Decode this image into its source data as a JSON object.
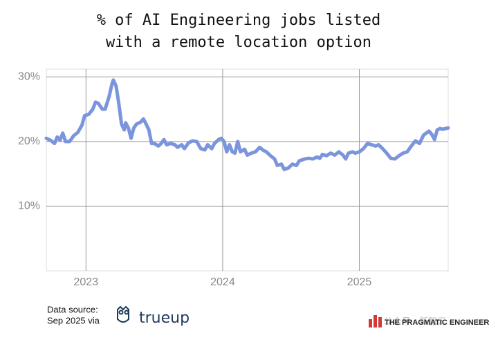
{
  "chart_data": {
    "type": "line",
    "title": [
      "% of AI Engineering jobs listed",
      "with a remote location option"
    ],
    "x": [
      2022.71,
      2022.74,
      2022.77,
      2022.79,
      2022.81,
      2022.83,
      2022.85,
      2022.88,
      2022.91,
      2022.94,
      2022.97,
      2022.99,
      2023.02,
      2023.05,
      2023.07,
      2023.09,
      2023.12,
      2023.14,
      2023.17,
      2023.19,
      2023.2,
      2023.22,
      2023.24,
      2023.26,
      2023.28,
      2023.29,
      2023.31,
      2023.33,
      2023.35,
      2023.37,
      2023.4,
      2023.42,
      2023.44,
      2023.46,
      2023.48,
      2023.5,
      2023.53,
      2023.55,
      2023.57,
      2023.59,
      2023.62,
      2023.65,
      2023.67,
      2023.7,
      2023.72,
      2023.75,
      2023.78,
      2023.81,
      2023.84,
      2023.87,
      2023.89,
      2023.92,
      2023.94,
      2023.97,
      2023.99,
      2024.01,
      2024.03,
      2024.05,
      2024.07,
      2024.09,
      2024.11,
      2024.13,
      2024.16,
      2024.18,
      2024.21,
      2024.24,
      2024.27,
      2024.3,
      2024.32,
      2024.35,
      2024.38,
      2024.4,
      2024.43,
      2024.45,
      2024.48,
      2024.51,
      2024.54,
      2024.56,
      2024.6,
      2024.63,
      2024.66,
      2024.69,
      2024.71,
      2024.73,
      2024.76,
      2024.79,
      2024.82,
      2024.85,
      2024.88,
      2024.9,
      2024.92,
      2024.95,
      2024.97,
      2025.0,
      2025.03,
      2025.06,
      2025.09,
      2025.12,
      2025.14,
      2025.17,
      2025.2,
      2025.23,
      2025.26,
      2025.29,
      2025.32,
      2025.35,
      2025.38,
      2025.41,
      2025.44,
      2025.47,
      2025.51,
      2025.53,
      2025.55,
      2025.57,
      2025.59,
      2025.61,
      2025.63,
      2025.65
    ],
    "values": [
      20.5,
      20.2,
      19.7,
      20.7,
      20.2,
      21.3,
      20.0,
      20.0,
      20.9,
      21.4,
      22.5,
      24.0,
      24.2,
      25.0,
      26.1,
      25.9,
      25.0,
      25.0,
      27.0,
      28.9,
      29.5,
      28.6,
      25.9,
      22.7,
      21.8,
      22.9,
      22.1,
      20.5,
      22.1,
      22.7,
      23.0,
      23.5,
      22.7,
      21.8,
      19.7,
      19.7,
      19.3,
      19.7,
      20.3,
      19.5,
      19.7,
      19.5,
      19.1,
      19.5,
      18.9,
      19.8,
      20.1,
      20.0,
      18.9,
      18.7,
      19.5,
      18.9,
      19.7,
      20.3,
      20.5,
      20.0,
      18.4,
      19.5,
      18.4,
      18.2,
      20.0,
      18.4,
      18.8,
      17.9,
      18.2,
      18.4,
      19.1,
      18.6,
      18.4,
      17.8,
      17.3,
      16.3,
      16.5,
      15.7,
      15.9,
      16.5,
      16.3,
      17.0,
      17.3,
      17.4,
      17.3,
      17.6,
      17.4,
      18.0,
      17.8,
      18.2,
      17.9,
      18.4,
      17.9,
      17.3,
      18.2,
      18.4,
      18.2,
      18.4,
      18.9,
      19.7,
      19.5,
      19.3,
      19.5,
      18.9,
      18.2,
      17.4,
      17.3,
      17.8,
      18.2,
      18.4,
      19.3,
      20.1,
      19.7,
      21.0,
      21.6,
      21.1,
      20.3,
      21.8,
      22.0,
      21.9,
      22.0,
      22.1
    ],
    "color": "#7b95dc",
    "xlim": [
      2022.71,
      2025.65
    ],
    "xticks": [
      2023,
      2024,
      2025
    ],
    "ylim": [
      0,
      31.2
    ],
    "yticks": [
      {
        "value": 10,
        "label": "10%"
      },
      {
        "value": 20,
        "label": "20%"
      },
      {
        "value": 30,
        "label": "30%"
      }
    ],
    "grid": true
  },
  "footer": {
    "source": [
      "Data source:",
      "Sep 2025 via"
    ],
    "logo": "trueup",
    "watermark": "公众号 · 新智元",
    "brand": "THE PRAGMATIC ENGINEER"
  }
}
